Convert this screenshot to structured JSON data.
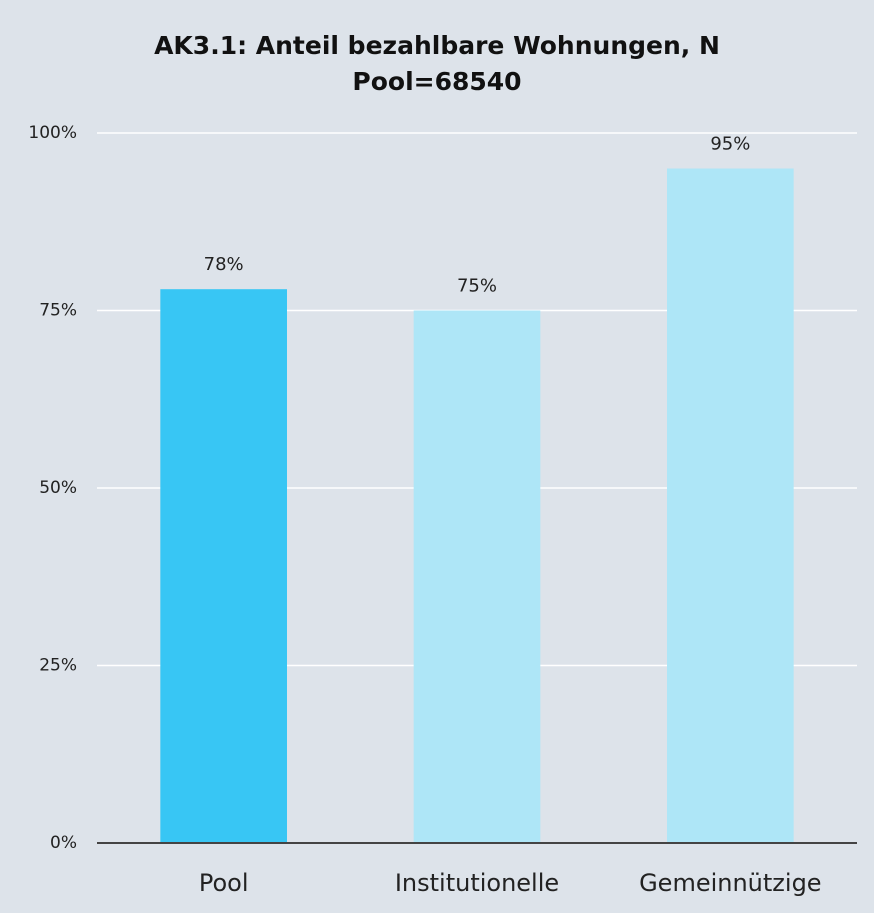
{
  "chart_data": {
    "type": "bar",
    "title": "AK3.1: Anteil bezahlbare Wohnungen, N Pool=68540",
    "categories": [
      "Pool",
      "Institutionelle",
      "Gemeinnützige"
    ],
    "values": [
      78,
      75,
      95
    ],
    "value_labels": [
      "78%",
      "75%",
      "95%"
    ],
    "colors": [
      "#38c6f4",
      "#aee6f7",
      "#aee6f7"
    ],
    "ylim": [
      0,
      100
    ],
    "yticks": [
      {
        "value": 0,
        "label": "0%"
      },
      {
        "value": 25,
        "label": "25%"
      },
      {
        "value": 50,
        "label": "50%"
      },
      {
        "value": 75,
        "label": "75%"
      },
      {
        "value": 100,
        "label": "100%"
      }
    ],
    "grid": true
  }
}
